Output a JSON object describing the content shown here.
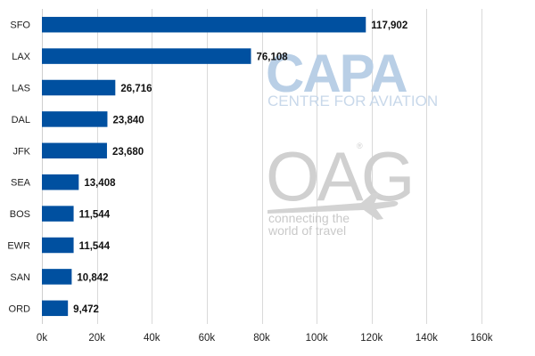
{
  "chart_data": {
    "type": "bar",
    "orientation": "horizontal",
    "categories": [
      "SFO",
      "LAX",
      "LAS",
      "DAL",
      "JFK",
      "SEA",
      "BOS",
      "EWR",
      "SAN",
      "ORD"
    ],
    "values": [
      117902,
      76108,
      26716,
      23840,
      23680,
      13408,
      11544,
      11544,
      10842,
      9472
    ],
    "value_labels": [
      "117,902",
      "76,108",
      "26,716",
      "23,840",
      "23,680",
      "13,408",
      "11,544",
      "11,544",
      "10,842",
      "9,472"
    ],
    "x_ticks": [
      0,
      20000,
      40000,
      60000,
      80000,
      100000,
      120000,
      140000,
      160000
    ],
    "x_tick_labels": [
      "0k",
      "20k",
      "40k",
      "60k",
      "80k",
      "100k",
      "120k",
      "140k",
      "160k"
    ],
    "xlim": [
      0,
      160000
    ],
    "title": "",
    "xlabel": "",
    "ylabel": "",
    "grid": true,
    "legend": "none",
    "bar_color": "#0050a0"
  },
  "watermarks": {
    "capa": "CAPA",
    "capa_sub": "CENTRE FOR AVIATION",
    "oag": "OAG",
    "oag_reg": "®",
    "oag_tag_line1": "connecting the",
    "oag_tag_line2": "world of travel"
  }
}
